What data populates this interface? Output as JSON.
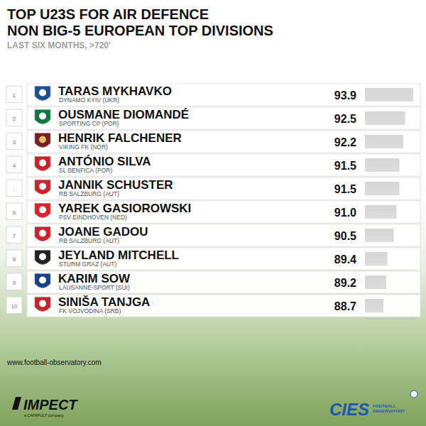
{
  "chart_data": {
    "type": "bar",
    "orientation": "horizontal",
    "title": "TOP U23S FOR AIR DEFENCE",
    "subtitle": "NON BIG-5 EUROPEAN TOP DIVISIONS",
    "annotations": [
      "LAST SIX MONTHS, >720'",
      "www.football-observatory.com",
      "IMPECT",
      "a CATAPULT company",
      "CIES",
      "FOOTBALL OBSERVATORY"
    ],
    "ranks": [
      "1",
      "2",
      "3",
      "4",
      ".",
      "6",
      "7",
      "8",
      "9",
      "10"
    ],
    "categories": [
      "TARAS MYKHAVKO",
      "OUSMANE DIOMANDÉ",
      "HENRIK FALCHENER",
      "ANTÓNIO SILVA",
      "JANNIK SCHUSTER",
      "YAREK GASIOROWSKI",
      "JOANE GADOU",
      "JEYLAND MITCHELL",
      "KARIM SOW",
      "SINIŠA TANJGA"
    ],
    "clubs": [
      "DYNAMO KYIV (UKR)",
      "SPORTING CP (POR)",
      "VIKING FK (NOR)",
      "SL BENFICA (POR)",
      "RB SALZBURG (AUT)",
      "PSV EINDHOVEN (NED)",
      "RB SALZBURG (AUT)",
      "STURM GRAZ (AUT)",
      "LAUSANNE-SPORT (SUI)",
      "FK VOJVODINA (SRB)"
    ],
    "values": [
      93.9,
      92.5,
      92.2,
      91.5,
      91.5,
      91.0,
      90.5,
      89.4,
      89.2,
      88.7
    ],
    "value_labels": [
      "93.9",
      "92.5",
      "92.2",
      "91.5",
      "91.5",
      "91.0",
      "90.5",
      "89.4",
      "89.2",
      "88.7"
    ],
    "data_labels": true,
    "color": "#d6d6d6",
    "xlim": [
      85.5,
      94.4
    ],
    "tick_labels": false,
    "grid": false
  }
}
